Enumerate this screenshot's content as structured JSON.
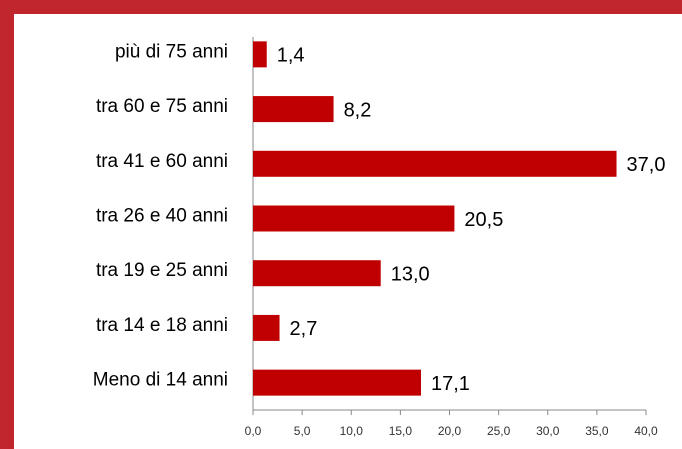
{
  "chart_data": {
    "type": "bar",
    "orientation": "horizontal",
    "categories": [
      "più di 75 anni",
      "tra 60 e 75 anni",
      "tra 41 e 60 anni",
      "tra 26 e 40 anni",
      "tra 19 e 25 anni",
      "tra 14 e 18 anni",
      "Meno di 14 anni"
    ],
    "values": [
      1.4,
      8.2,
      37.0,
      20.5,
      13.0,
      2.7,
      17.1
    ],
    "value_labels": [
      "1,4",
      "8,2",
      "37,0",
      "20,5",
      "13,0",
      "2,7",
      "17,1"
    ],
    "color": "#c00000",
    "xlim": [
      0,
      40
    ],
    "xticks": [
      {
        "value": 0,
        "label": "0,0"
      },
      {
        "value": 5,
        "label": "5,0"
      },
      {
        "value": 10,
        "label": "10,0"
      },
      {
        "value": 15,
        "label": "15,0"
      },
      {
        "value": 20,
        "label": "20,0"
      },
      {
        "value": 25,
        "label": "25,0"
      },
      {
        "value": 30,
        "label": "30,0"
      },
      {
        "value": 35,
        "label": "35,0"
      },
      {
        "value": 40,
        "label": "40,0"
      }
    ],
    "grid": false
  }
}
